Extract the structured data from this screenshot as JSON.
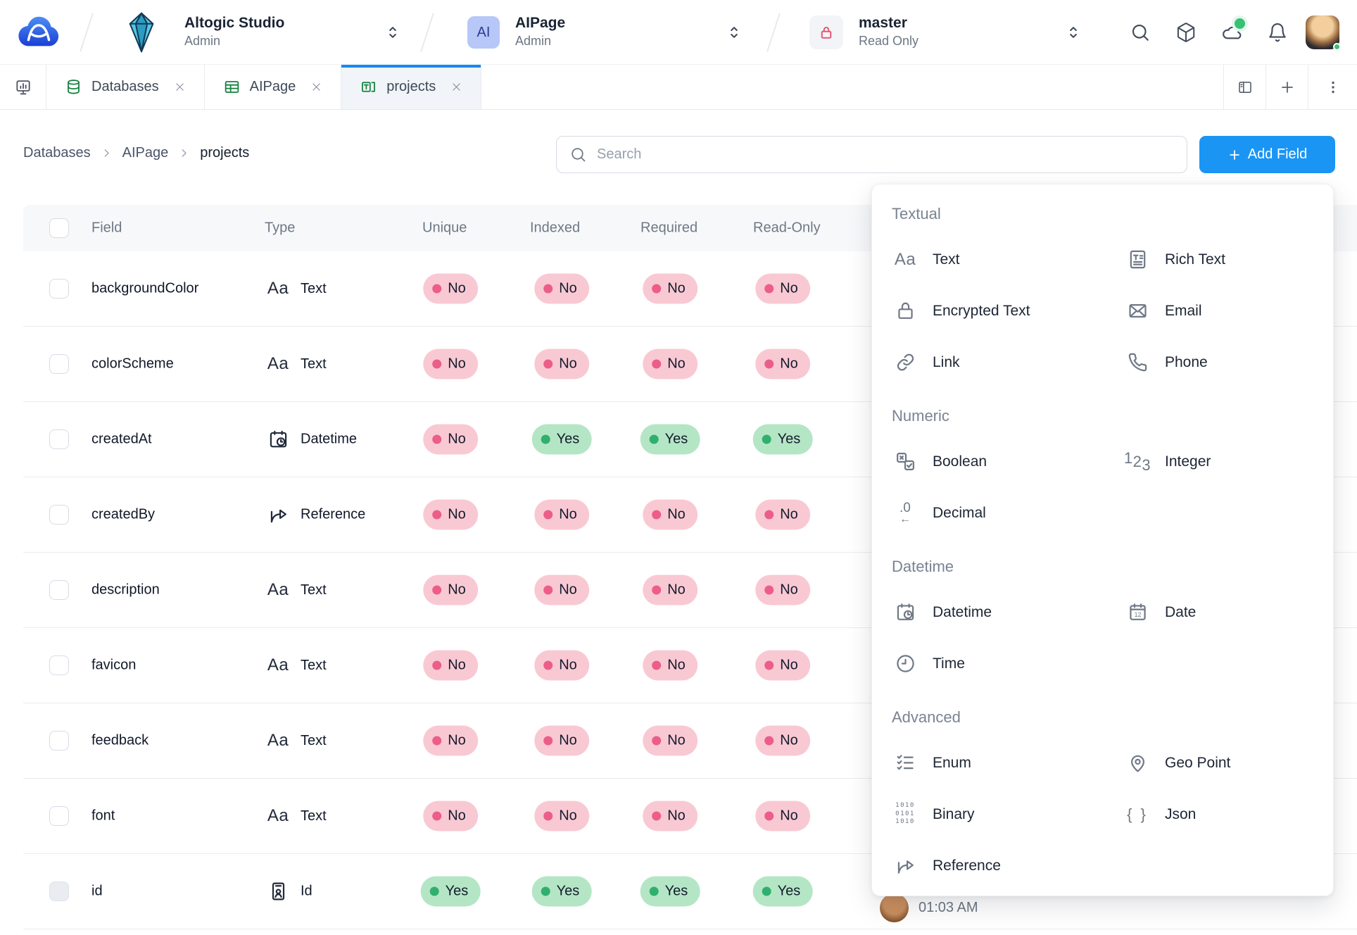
{
  "topbar": {
    "org": {
      "name": "Altogic Studio",
      "role": "Admin"
    },
    "app": {
      "name": "AIPage",
      "role": "Admin",
      "avatar_text": "AI"
    },
    "version": {
      "name": "master",
      "role": "Read Only"
    },
    "action_icons": [
      "search",
      "package",
      "cloud",
      "bell"
    ]
  },
  "tabbar": {
    "tabs": [
      {
        "label": "Databases",
        "icon": "database"
      },
      {
        "label": "AIPage",
        "icon": "table"
      },
      {
        "label": "projects",
        "icon": "model",
        "active": true
      }
    ],
    "right_icons": [
      "split-view",
      "add-tab",
      "more"
    ]
  },
  "toolbar": {
    "breadcrumbs": [
      {
        "label": "Databases"
      },
      {
        "label": "AIPage"
      },
      {
        "label": "projects",
        "current": true
      }
    ],
    "search": {
      "placeholder": "Search"
    },
    "add_field": {
      "label": "Add Field"
    }
  },
  "fields_table": {
    "columns": [
      "Field",
      "Type",
      "Unique",
      "Indexed",
      "Required",
      "Read-Only"
    ],
    "rows": [
      {
        "field": "backgroundColor",
        "type": "Text",
        "icon": "text",
        "unique": "No",
        "indexed": "No",
        "required": "No",
        "read_only": "No"
      },
      {
        "field": "colorScheme",
        "type": "Text",
        "icon": "text",
        "unique": "No",
        "indexed": "No",
        "required": "No",
        "read_only": "No"
      },
      {
        "field": "createdAt",
        "type": "Datetime",
        "icon": "datetime",
        "unique": "No",
        "indexed": "Yes",
        "required": "Yes",
        "read_only": "Yes"
      },
      {
        "field": "createdBy",
        "type": "Reference",
        "icon": "reference",
        "unique": "No",
        "indexed": "No",
        "required": "No",
        "read_only": "No"
      },
      {
        "field": "description",
        "type": "Text",
        "icon": "text",
        "unique": "No",
        "indexed": "No",
        "required": "No",
        "read_only": "No"
      },
      {
        "field": "favicon",
        "type": "Text",
        "icon": "text",
        "unique": "No",
        "indexed": "No",
        "required": "No",
        "read_only": "No"
      },
      {
        "field": "feedback",
        "type": "Text",
        "icon": "text",
        "unique": "No",
        "indexed": "No",
        "required": "No",
        "read_only": "No"
      },
      {
        "field": "font",
        "type": "Text",
        "icon": "text",
        "unique": "No",
        "indexed": "No",
        "required": "No",
        "read_only": "No"
      },
      {
        "field": "id",
        "type": "Id",
        "icon": "id",
        "unique": "Yes",
        "indexed": "Yes",
        "required": "Yes",
        "read_only": "Yes",
        "checkbox_disabled": true,
        "created_time": "01:03 AM"
      }
    ]
  },
  "field_type_menu": {
    "sections": [
      {
        "title": "Textual",
        "items": [
          {
            "label": "Text",
            "icon": "text"
          },
          {
            "label": "Rich Text",
            "icon": "rich-text"
          },
          {
            "label": "Encrypted Text",
            "icon": "encrypted-text"
          },
          {
            "label": "Email",
            "icon": "email"
          },
          {
            "label": "Link",
            "icon": "link"
          },
          {
            "label": "Phone",
            "icon": "phone"
          }
        ]
      },
      {
        "title": "Numeric",
        "items": [
          {
            "label": "Boolean",
            "icon": "boolean"
          },
          {
            "label": "Integer",
            "icon": "integer"
          },
          {
            "label": "Decimal",
            "icon": "decimal"
          }
        ]
      },
      {
        "title": "Datetime",
        "items": [
          {
            "label": "Datetime",
            "icon": "datetime"
          },
          {
            "label": "Date",
            "icon": "date"
          },
          {
            "label": "Time",
            "icon": "time"
          }
        ]
      },
      {
        "title": "Advanced",
        "items": [
          {
            "label": "Enum",
            "icon": "enum"
          },
          {
            "label": "Geo Point",
            "icon": "geo-point"
          },
          {
            "label": "Binary",
            "icon": "binary"
          },
          {
            "label": "Json",
            "icon": "json"
          },
          {
            "label": "Reference",
            "icon": "reference"
          }
        ]
      }
    ]
  },
  "colors": {
    "accent_blue": "#1b95f4",
    "tab_active_border": "#1789f2",
    "badge_no_bg": "#f9c9d3",
    "badge_no_dot": "#ec5d8a",
    "badge_yes_bg": "#b4e6c5",
    "badge_yes_dot": "#31af6e",
    "tab_icon_green": "#15803d",
    "lock_pink": "#e8516f"
  }
}
